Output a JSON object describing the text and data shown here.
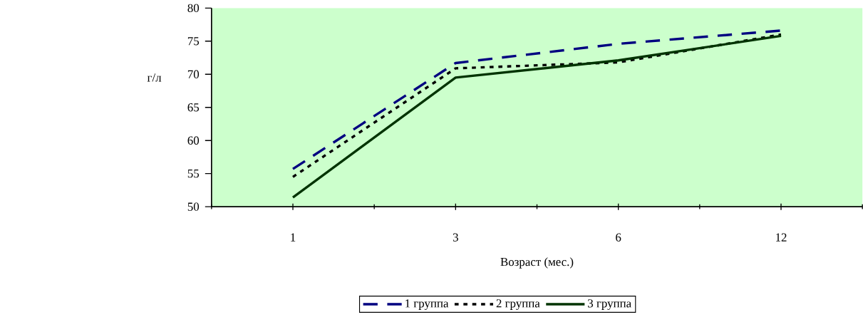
{
  "chart_data": {
    "type": "line",
    "xlabel": "Возраст (мес.)",
    "ylabel": "г/л",
    "categories": [
      "1",
      "3",
      "6",
      "12"
    ],
    "series": [
      {
        "name": "1 группа",
        "color": "#000080",
        "line_style": "dashed",
        "values": [
          55.7,
          71.7,
          74.6,
          76.6
        ]
      },
      {
        "name": "2 группа",
        "color": "#000000",
        "line_style": "dotted",
        "values": [
          54.5,
          70.9,
          71.8,
          76.0
        ]
      },
      {
        "name": "3 группа",
        "color": "#003300",
        "line_style": "solid",
        "values": [
          51.4,
          69.5,
          72.1,
          75.8
        ]
      }
    ],
    "ylim": [
      50,
      80
    ],
    "yticks": [
      50,
      55,
      60,
      65,
      70,
      75,
      80
    ],
    "grid": false,
    "legend": "bottom"
  }
}
